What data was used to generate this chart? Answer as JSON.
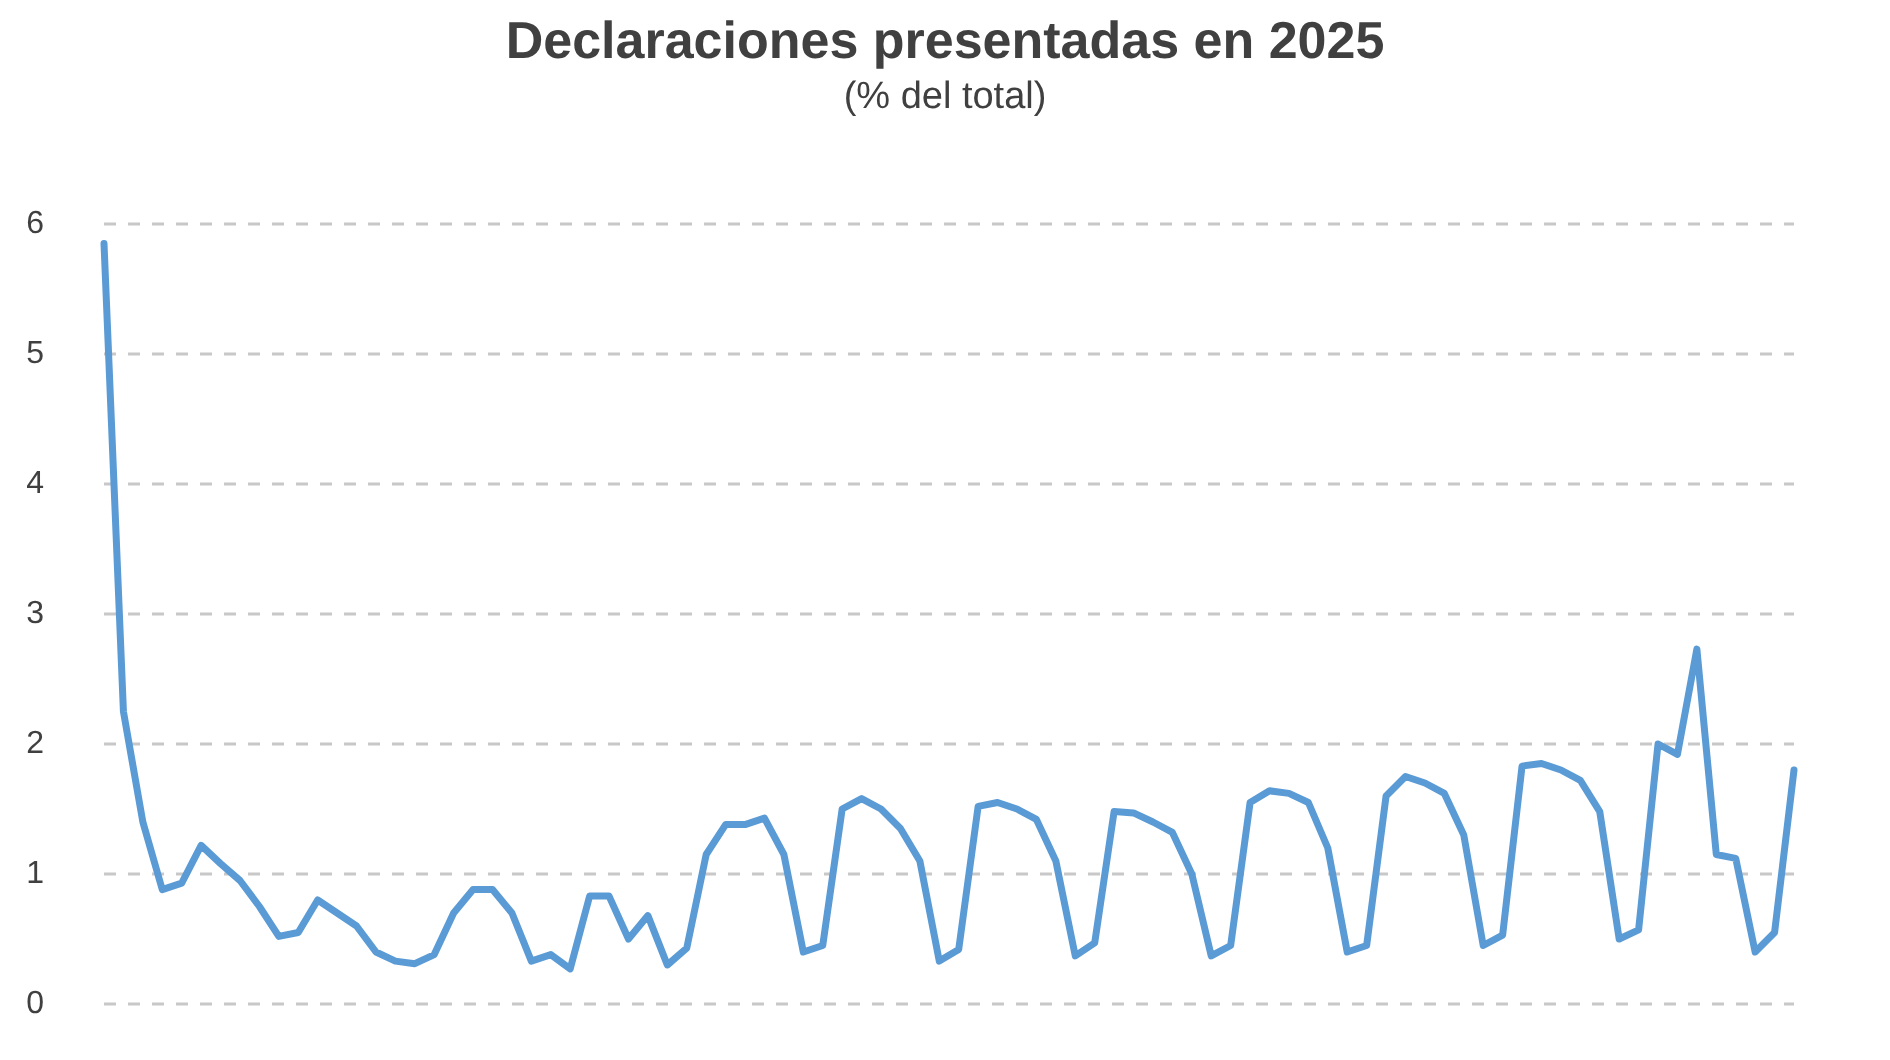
{
  "chart_data": {
    "type": "line",
    "title": "Declaraciones presentadas en 2025",
    "subtitle": "(% del total)",
    "categories": [
      null,
      null,
      null,
      null,
      null,
      null,
      null,
      null,
      null,
      null,
      null,
      null,
      null,
      null,
      null,
      null,
      null,
      null,
      null,
      null,
      null,
      null,
      null,
      null,
      null,
      null,
      null,
      null,
      null,
      null,
      null,
      null,
      null,
      null,
      null,
      null,
      null,
      null,
      null,
      null,
      null,
      null,
      null,
      null,
      null,
      null,
      null,
      null,
      null,
      null,
      null,
      null,
      null,
      null,
      null,
      null,
      null,
      null,
      null,
      null,
      null,
      null,
      null,
      null,
      null,
      null,
      null,
      null,
      null,
      null,
      null,
      null,
      null,
      null,
      null,
      null,
      null,
      null,
      null,
      null,
      null,
      null,
      null,
      null,
      null,
      null,
      null,
      null
    ],
    "series": [
      {
        "color": "#5b9bd5",
        "values": [
          5.85,
          2.25,
          1.4,
          0.88,
          0.93,
          1.22,
          1.08,
          0.95,
          0.75,
          0.52,
          0.55,
          0.8,
          0.7,
          0.6,
          0.4,
          0.33,
          0.31,
          0.38,
          0.7,
          0.88,
          0.88,
          0.7,
          0.33,
          0.38,
          0.27,
          0.83,
          0.83,
          0.5,
          0.68,
          0.3,
          0.43,
          1.15,
          1.38,
          1.38,
          1.43,
          1.15,
          0.4,
          0.45,
          1.5,
          1.58,
          1.5,
          1.35,
          1.1,
          0.33,
          0.42,
          1.52,
          1.55,
          1.5,
          1.42,
          1.1,
          0.37,
          0.47,
          1.48,
          1.47,
          1.4,
          1.32,
          1.0,
          0.37,
          0.45,
          1.55,
          1.64,
          1.62,
          1.55,
          1.2,
          0.4,
          0.45,
          1.6,
          1.75,
          1.7,
          1.62,
          1.3,
          0.45,
          0.53,
          1.83,
          1.85,
          1.8,
          1.72,
          1.48,
          0.5,
          0.57,
          2.0,
          1.92,
          2.73,
          1.15,
          1.12,
          0.4,
          0.55,
          1.8
        ]
      }
    ],
    "ylim": [
      0,
      6
    ],
    "yticks": [
      0,
      1,
      2,
      3,
      4,
      5,
      6
    ],
    "grid": "y",
    "marker": "none",
    "line_style": "solid",
    "tick_labels": "y"
  }
}
